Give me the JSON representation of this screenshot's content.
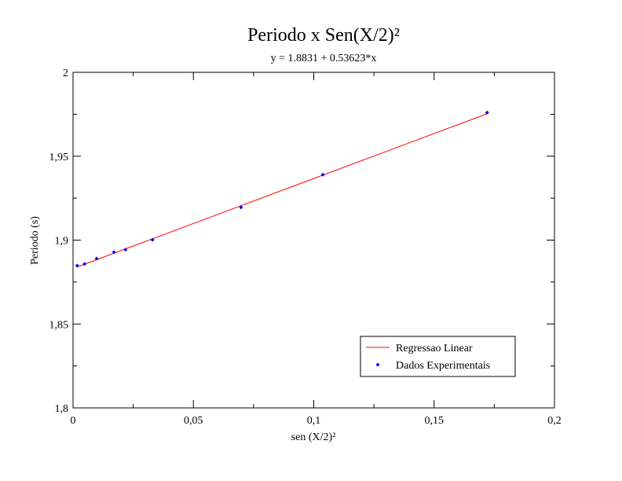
{
  "chart_data": {
    "type": "scatter",
    "title": "Periodo x Sen(X/2)²",
    "subtitle": "y = 1.8831 + 0.53623*x",
    "xlabel": "sen (X/2)²",
    "ylabel": "Periodo (s)",
    "xlim": [
      0,
      0.2
    ],
    "ylim": [
      1.8,
      2.0
    ],
    "x_ticks": [
      0,
      0.05,
      0.1,
      0.15,
      0.2
    ],
    "x_tick_labels": [
      "0",
      "0,05",
      "0,1",
      "0,15",
      "0,2"
    ],
    "y_ticks": [
      1.8,
      1.85,
      1.9,
      1.95,
      2.0
    ],
    "y_tick_labels": [
      "1,8",
      "1,85",
      "1,9",
      "1,95",
      "2"
    ],
    "grid": false,
    "legend_position": "bottom-right",
    "series": [
      {
        "name": "Regressao Linear",
        "kind": "line",
        "color": "#ff0000",
        "x": [
          0.0017,
          0.172
        ],
        "y": [
          1.884,
          1.9753
        ]
      },
      {
        "name": "Dados Experimentais",
        "kind": "scatter",
        "color": "#0000ff",
        "x": [
          0.0017,
          0.0048,
          0.0098,
          0.017,
          0.0218,
          0.033,
          0.0698,
          0.1038,
          0.172
        ],
        "y": [
          1.8848,
          1.8858,
          1.889,
          1.8928,
          1.8943,
          1.9002,
          1.9195,
          1.939,
          1.976
        ]
      }
    ]
  }
}
